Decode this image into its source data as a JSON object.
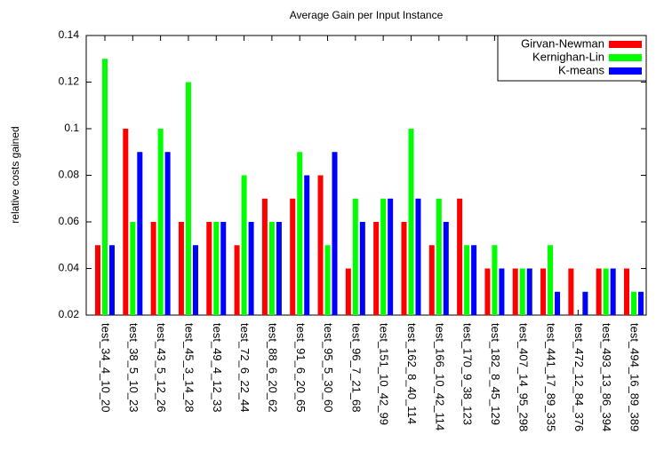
{
  "chart_data": {
    "type": "bar",
    "title": "Average Gain per Input Instance",
    "y_label": "relative costs gained",
    "categories": [
      "test_34_4_10_20",
      "test_38_5_10_23",
      "test_43_5_12_26",
      "test_45_3_14_28",
      "test_49_4_12_33",
      "test_72_6_22_44",
      "test_88_6_20_62",
      "test_91_6_20_65",
      "test_95_5_30_60",
      "test_96_7_21_68",
      "test_151_10_42_99",
      "test_162_8_40_114",
      "test_166_10_42_114",
      "test_170_9_38_123",
      "test_182_8_45_129",
      "test_407_14_95_298",
      "test_441_17_89_335",
      "test_472_12_84_376",
      "test_493_13_86_394",
      "test_494_16_89_389"
    ],
    "series": [
      {
        "name": "Girvan-Newman",
        "color": "#ff0000",
        "values": [
          0.05,
          0.1,
          0.06,
          0.06,
          0.06,
          0.05,
          0.07,
          0.07,
          0.08,
          0.04,
          0.06,
          0.06,
          0.05,
          0.07,
          0.04,
          0.04,
          0.04,
          0.04,
          0.04,
          0.04
        ]
      },
      {
        "name": "Kernighan-Lin",
        "color": "#00ff00",
        "values": [
          0.13,
          0.06,
          0.1,
          0.12,
          0.06,
          0.08,
          0.06,
          0.09,
          0.05,
          0.07,
          0.07,
          0.1,
          0.07,
          0.05,
          0.05,
          0.04,
          0.05,
          0.02,
          0.04,
          0.03
        ]
      },
      {
        "name": "K-means",
        "color": "#0000ff",
        "values": [
          0.05,
          0.09,
          0.09,
          0.05,
          0.06,
          0.06,
          0.06,
          0.08,
          0.09,
          0.06,
          0.07,
          0.07,
          0.06,
          0.05,
          0.04,
          0.04,
          0.03,
          0.03,
          0.04,
          0.03
        ]
      }
    ],
    "ylim": [
      0.02,
      0.14
    ],
    "yticks": [
      0.02,
      0.04,
      0.06,
      0.08,
      0.1,
      0.12,
      0.14
    ],
    "grid": false,
    "legend": "top-right"
  }
}
